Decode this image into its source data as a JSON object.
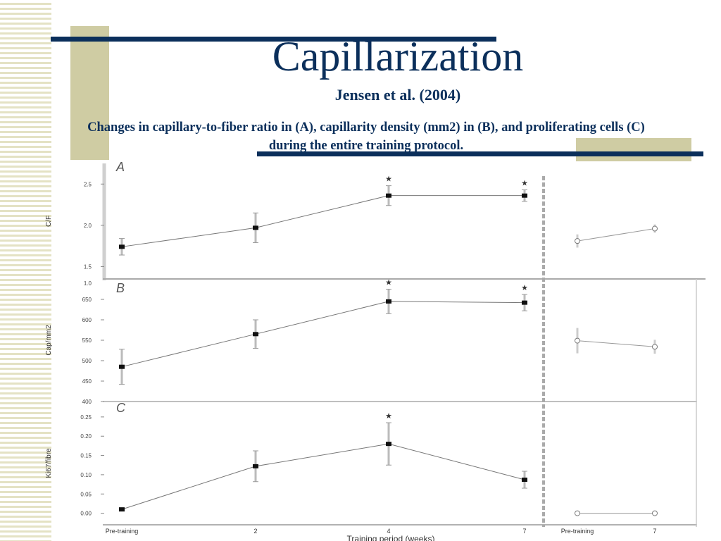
{
  "slide": {
    "title": "Capillarization",
    "subtitle": "Jensen et al. (2004)",
    "caption": "Changes in capillary-to-fiber ratio in (A), capillarity density (mm2) in (B), and proliferating cells (C) during the entire training protocol."
  },
  "colors": {
    "navy": "#0b2f5b",
    "olive": "#cfcca3",
    "stripe": "#e4e2c4"
  },
  "chart_data": [
    {
      "type": "line",
      "panel": "A",
      "ylabel": "C/F",
      "y_ticks": [
        "1.5",
        "2.0",
        "2.5"
      ],
      "ylim": [
        1.35,
        2.75
      ],
      "x": [
        "Pre-training",
        "2",
        "4",
        "7"
      ],
      "series": [
        {
          "values": [
            1.74,
            1.97,
            2.36,
            2.36
          ],
          "errors": [
            0.1,
            0.18,
            0.12,
            0.07
          ],
          "significant": [
            false,
            false,
            true,
            true
          ]
        }
      ],
      "followup": {
        "x": [
          "Pre-training",
          "7"
        ],
        "values": [
          1.81,
          1.96
        ],
        "errors": [
          0.08,
          0.05
        ]
      }
    },
    {
      "type": "line",
      "panel": "B",
      "ylabel": "Cap/mm2",
      "y_ticks": [
        "400",
        "450",
        "500",
        "550",
        "600",
        "650"
      ],
      "ylim": [
        400,
        700
      ],
      "x": [
        "Pre-training",
        "2",
        "4",
        "7"
      ],
      "series": [
        {
          "values": [
            485,
            565,
            645,
            642
          ],
          "errors": [
            43,
            35,
            30,
            20
          ],
          "significant": [
            false,
            false,
            true,
            true
          ]
        }
      ],
      "followup": {
        "x": [
          "Pre-training",
          "7"
        ],
        "values": [
          549,
          534
        ],
        "errors": [
          31,
          17
        ]
      }
    },
    {
      "type": "line",
      "panel": "C",
      "ylabel": "Ki67/fibre",
      "y_ticks": [
        "0.00",
        "0.05",
        "0.10",
        "0.15",
        "0.20",
        "0.25"
      ],
      "ylim": [
        -0.03,
        0.29
      ],
      "x": [
        "Pre-training",
        "2",
        "4",
        "7"
      ],
      "xlabel": "Training period (weeks)",
      "series": [
        {
          "values": [
            0.01,
            0.122,
            0.18,
            0.087
          ],
          "errors": [
            0.003,
            0.04,
            0.055,
            0.022
          ],
          "significant": [
            false,
            false,
            true,
            false
          ]
        }
      ],
      "followup": {
        "x": [
          "Pre-training",
          "7"
        ],
        "values": [
          0.0,
          0.0
        ],
        "errors": [
          0,
          0
        ]
      }
    }
  ],
  "axis_label_glitch": "1.0"
}
